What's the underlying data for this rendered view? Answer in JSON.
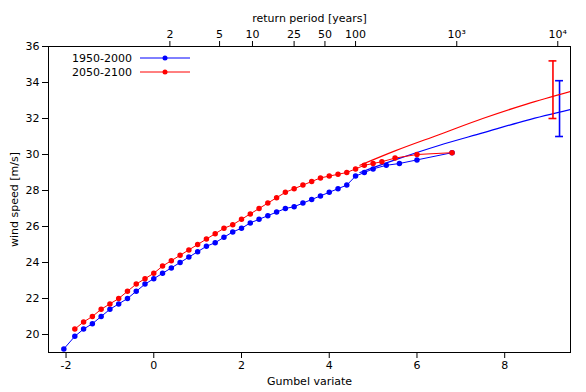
{
  "chart_data": {
    "type": "scatter",
    "xlabel": "Gumbel variate",
    "ylabel": "wind speed [m/s]",
    "x2label": "return period [years]",
    "xlim": [
      -2.4,
      9.5
    ],
    "xticks": [
      -2,
      0,
      2,
      4,
      6,
      8
    ],
    "x2ticks": [
      {
        "value": 0.367,
        "label": "2"
      },
      {
        "value": 1.5,
        "label": "5"
      },
      {
        "value": 2.25,
        "label": "10"
      },
      {
        "value": 3.199,
        "label": "25"
      },
      {
        "value": 3.902,
        "label": "50"
      },
      {
        "value": 4.6,
        "label": "100"
      },
      {
        "value": 6.907,
        "label": "10³"
      },
      {
        "value": 9.21,
        "label": "10⁴"
      }
    ],
    "ylim": [
      19,
      36
    ],
    "yticks": [
      20,
      22,
      24,
      26,
      28,
      30,
      32,
      34,
      36
    ],
    "grid": false,
    "legend": "top-left",
    "series": [
      {
        "name": "1950-2000",
        "color": "#0000ff",
        "marker": "circle",
        "line_style": "solid",
        "x": [
          -2.05,
          -1.8,
          -1.6,
          -1.4,
          -1.2,
          -1.0,
          -0.8,
          -0.6,
          -0.4,
          -0.2,
          0,
          0.2,
          0.4,
          0.6,
          0.8,
          1.0,
          1.2,
          1.4,
          1.6,
          1.8,
          2.0,
          2.2,
          2.4,
          2.6,
          2.8,
          3.0,
          3.2,
          3.4,
          3.6,
          3.8,
          4.0,
          4.2,
          4.4,
          4.6,
          4.8,
          5.0,
          5.3,
          5.6,
          6.0,
          6.8
        ],
        "values": [
          19.2,
          19.9,
          20.3,
          20.6,
          21.0,
          21.4,
          21.7,
          22.0,
          22.4,
          22.8,
          23.1,
          23.4,
          23.7,
          24.0,
          24.3,
          24.6,
          24.9,
          25.1,
          25.4,
          25.7,
          25.9,
          26.2,
          26.4,
          26.6,
          26.8,
          27.0,
          27.1,
          27.3,
          27.5,
          27.7,
          27.9,
          28.1,
          28.3,
          28.8,
          29.0,
          29.2,
          29.4,
          29.5,
          29.7,
          30.1
        ],
        "fit": {
          "x": [
            4.7,
            5.5,
            6.5,
            7.5,
            8.5,
            9.5
          ],
          "values": [
            29.0,
            29.7,
            30.5,
            31.2,
            31.9,
            32.5
          ]
        },
        "error_bar": {
          "x": 9.25,
          "low": 31.0,
          "high": 34.1
        }
      },
      {
        "name": "2050-2100",
        "color": "#ff0000",
        "marker": "circle",
        "line_style": "solid",
        "x": [
          -1.8,
          -1.6,
          -1.4,
          -1.2,
          -1.0,
          -0.8,
          -0.6,
          -0.4,
          -0.2,
          0,
          0.2,
          0.4,
          0.6,
          0.8,
          1.0,
          1.2,
          1.4,
          1.6,
          1.8,
          2.0,
          2.2,
          2.4,
          2.6,
          2.8,
          3.0,
          3.2,
          3.4,
          3.6,
          3.8,
          4.0,
          4.2,
          4.4,
          4.6,
          4.8,
          5.0,
          5.2,
          5.5,
          6.0,
          6.8
        ],
        "values": [
          20.3,
          20.7,
          21.0,
          21.4,
          21.7,
          22.0,
          22.4,
          22.8,
          23.1,
          23.4,
          23.8,
          24.1,
          24.4,
          24.7,
          25.0,
          25.3,
          25.6,
          25.9,
          26.1,
          26.4,
          26.7,
          27.0,
          27.3,
          27.6,
          27.9,
          28.1,
          28.3,
          28.5,
          28.7,
          28.8,
          28.9,
          29.0,
          29.2,
          29.4,
          29.5,
          29.6,
          29.8,
          30.0,
          30.1
        ],
        "fit": {
          "x": [
            4.7,
            5.5,
            6.5,
            7.5,
            8.5,
            9.5
          ],
          "values": [
            29.4,
            30.2,
            31.1,
            32.0,
            32.8,
            33.5
          ]
        },
        "error_bar": {
          "x": 9.1,
          "low": 32.0,
          "high": 35.2
        }
      }
    ]
  }
}
